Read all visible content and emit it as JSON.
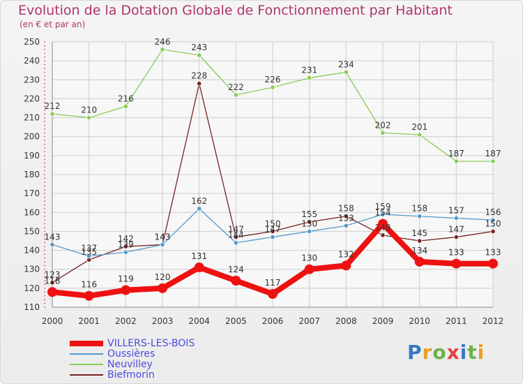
{
  "header": {
    "title": "Evolution de la Dotation Globale de Fonctionnement par Habitant",
    "subtitle": "(en € et par an)"
  },
  "logo": {
    "letters": [
      "P",
      "r",
      "o",
      "x",
      "i",
      "t",
      "i"
    ]
  },
  "colors": {
    "title": "#b03468",
    "legend_text": "#4a4ae0",
    "grid": "#cccccc",
    "axis_tick": "#c0392b"
  },
  "chart_data": {
    "type": "line",
    "title": "Evolution de la Dotation Globale de Fonctionnement par Habitant",
    "subtitle": "(en € et par an)",
    "xlabel": "",
    "ylabel": "",
    "x": [
      "2000",
      "2001",
      "2002",
      "2003",
      "2004",
      "2005",
      "2006",
      "2007",
      "2008",
      "2009",
      "2010",
      "2011",
      "2012"
    ],
    "ylim": [
      110,
      250
    ],
    "yticks": [
      110,
      120,
      130,
      140,
      150,
      160,
      170,
      180,
      190,
      200,
      210,
      220,
      230,
      240,
      250
    ],
    "grid": true,
    "legend_position": "bottom-left",
    "series": [
      {
        "name": "VILLERS-LES-BOIS",
        "color": "#ee1111",
        "values": [
          118,
          116,
          119,
          120,
          131,
          124,
          117,
          130,
          132,
          154,
          134,
          133,
          133
        ],
        "labels": [
          "118",
          "116",
          "119",
          "120",
          "131",
          "124",
          "117",
          "130",
          "132",
          "154",
          "134",
          "133",
          "133"
        ]
      },
      {
        "name": "Oussières",
        "color": "#5599cc",
        "values": [
          143,
          137,
          139,
          143,
          162,
          144,
          147,
          150,
          153,
          159,
          158,
          157,
          156
        ],
        "labels": [
          "143",
          "137",
          "139",
          "143",
          "162",
          "144",
          "147",
          "150",
          "153",
          "159",
          "158",
          "157",
          "156"
        ]
      },
      {
        "name": "Neuvilley",
        "color": "#88cc55",
        "values": [
          212,
          210,
          216,
          246,
          243,
          222,
          226,
          231,
          234,
          202,
          201,
          187,
          187
        ],
        "labels": [
          "212",
          "210",
          "216",
          "246",
          "243",
          "222",
          "226",
          "231",
          "234",
          "202",
          "201",
          "187",
          "187"
        ]
      },
      {
        "name": "Biefmorin",
        "color": "#772222",
        "values": [
          123,
          135,
          142,
          143,
          228,
          147,
          150,
          155,
          158,
          148,
          145,
          147,
          150
        ],
        "labels": [
          "123",
          "135",
          "142",
          "143",
          "228",
          "147",
          "150",
          "155",
          "158",
          "148",
          "145",
          "147",
          "150"
        ]
      }
    ]
  }
}
